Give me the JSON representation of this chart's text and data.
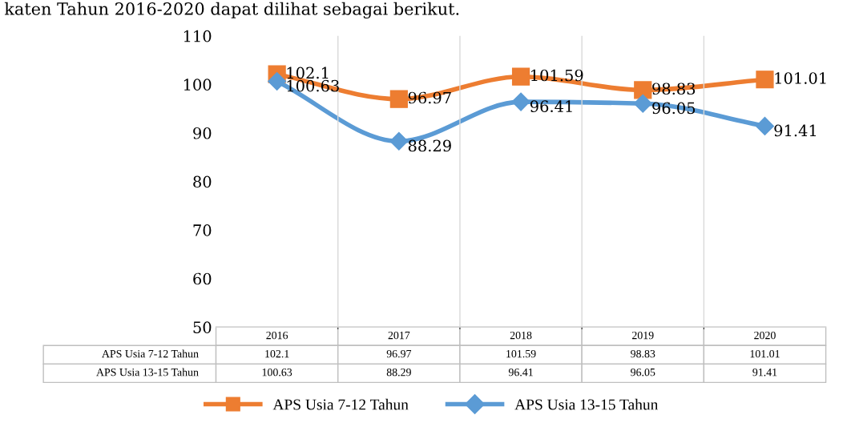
{
  "chart_data": {
    "type": "line",
    "annotations": [
      "katen Tahun 2016-2020 dapat dilihat sebagai berikut."
    ],
    "categories": [
      "2016",
      "2017",
      "2018",
      "2019",
      "2020"
    ],
    "series": [
      {
        "name": "APS Usia 7-12 Tahun",
        "color": "#ed7d31",
        "marker": "square",
        "values": [
          102.1,
          96.97,
          101.59,
          98.83,
          101.01
        ],
        "value_labels": [
          "102.1",
          "96.97",
          "101.59",
          "98.83",
          "101.01"
        ]
      },
      {
        "name": "APS Usia 13-15 Tahun",
        "color": "#5b9bd5",
        "marker": "diamond",
        "values": [
          100.63,
          88.29,
          96.41,
          96.05,
          91.41
        ],
        "value_labels": [
          "100.63",
          "88.29",
          "96.41",
          "96.05",
          "91.41"
        ]
      }
    ],
    "ylim": [
      50,
      110
    ],
    "yticks": [
      50,
      60,
      70,
      80,
      90,
      100,
      110
    ],
    "grid": "x",
    "legend": "bottom",
    "data_labels": true,
    "line_style": "solid"
  }
}
